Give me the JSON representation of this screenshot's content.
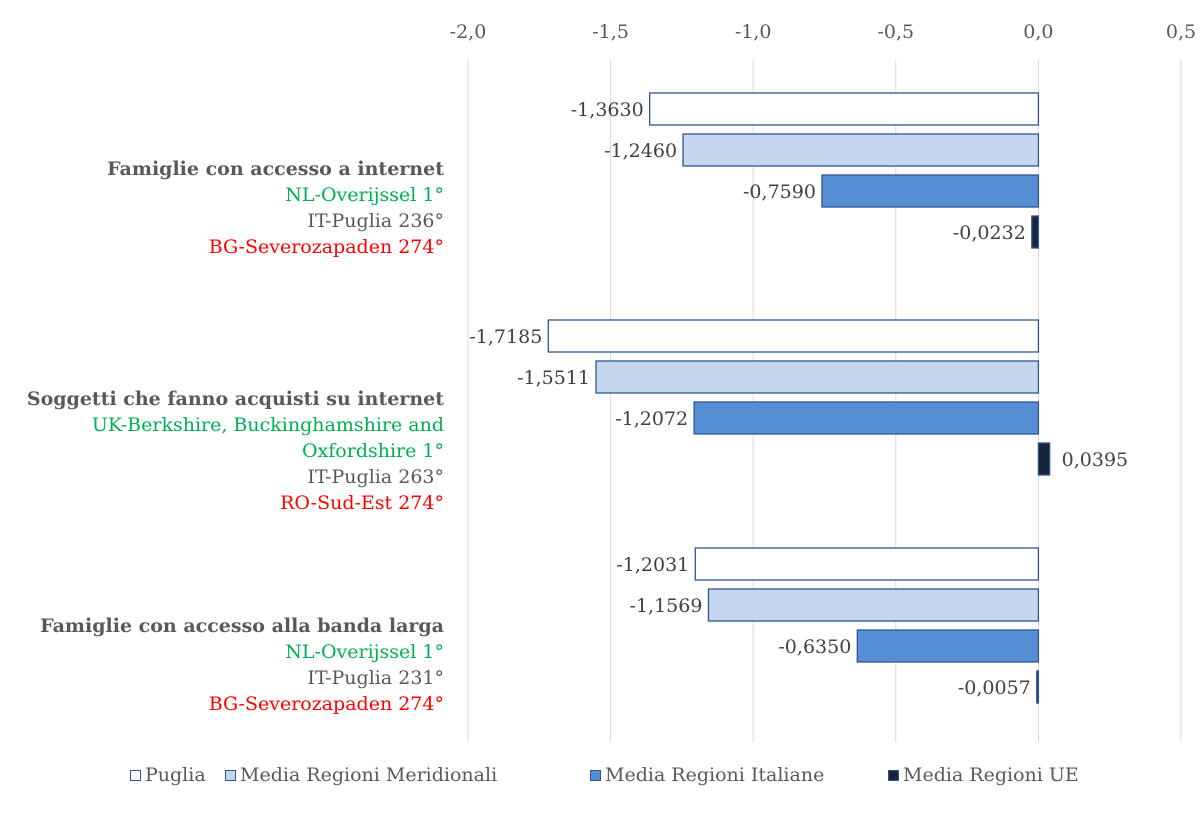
{
  "chart_data": {
    "type": "bar",
    "orientation": "horizontal",
    "xlim": [
      -2.0,
      0.5
    ],
    "xticks": [
      "-2,0",
      "-1,5",
      "-1,0",
      "-0,5",
      "0,0",
      "0,5"
    ],
    "grid": true,
    "legend_position": "bottom",
    "categories": [
      {
        "title": "Famiglie con accesso a internet",
        "best": "NL-Overijssel 1°",
        "mid": "IT-Puglia 236°",
        "worst": "BG-Severozapaden 274°"
      },
      {
        "title": "Soggetti che fanno acquisti su internet",
        "best_lines": [
          "UK-Berkshire, Buckinghamshire and",
          "Oxfordshire 1°"
        ],
        "mid": "IT-Puglia 263°",
        "worst": "RO-Sud-Est 274°"
      },
      {
        "title": "Famiglie con accesso alla banda larga",
        "best": "NL-Overijssel 1°",
        "mid": "IT-Puglia 231°",
        "worst": "BG-Severozapaden 274°"
      }
    ],
    "series": [
      {
        "name": "Puglia",
        "color": "#ffffff",
        "values": [
          -1.363,
          -1.7185,
          -1.2031
        ],
        "labels": [
          "-1,3630",
          "-1,7185",
          "-1,2031"
        ]
      },
      {
        "name": "Media Regioni Meridionali",
        "color": "#c5d7ef",
        "values": [
          -1.246,
          -1.5511,
          -1.1569
        ],
        "labels": [
          "-1,2460",
          "-1,5511",
          "-1,1569"
        ]
      },
      {
        "name": "Media Regioni Italiane",
        "color": "#558ed5",
        "values": [
          -0.759,
          -1.2072,
          -0.635
        ],
        "labels": [
          "-0,7590",
          "-1,2072",
          "-0,6350"
        ]
      },
      {
        "name": "Media Regioni UE",
        "color": "#17243b",
        "values": [
          -0.0232,
          0.0395,
          -0.0057
        ],
        "labels": [
          "-0,0232",
          "0,0395",
          "-0,0057"
        ]
      }
    ],
    "bar_border_color": "#2f5597",
    "gridline_color": "#d9d9d9"
  }
}
